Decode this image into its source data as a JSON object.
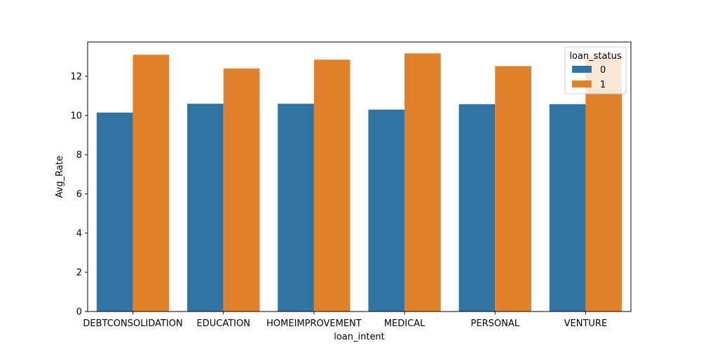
{
  "chart_data": {
    "type": "bar",
    "title": "",
    "xlabel": "loan_intent",
    "ylabel": "Avg_Rate",
    "categories": [
      "DEBTCONSOLIDATION",
      "EDUCATION",
      "HOMEIMPROVEMENT",
      "MEDICAL",
      "PERSONAL",
      "VENTURE"
    ],
    "series": [
      {
        "name": "0",
        "color": "#3274a1",
        "values": [
          10.15,
          10.6,
          10.6,
          10.3,
          10.58,
          10.58
        ]
      },
      {
        "name": "1",
        "color": "#e1812c",
        "values": [
          13.1,
          12.4,
          12.85,
          13.17,
          12.52,
          13.0
        ]
      }
    ],
    "ylim": [
      0,
      13.75
    ],
    "yticks": [
      0,
      2,
      4,
      6,
      8,
      10,
      12
    ],
    "legend": {
      "title": "loan_status",
      "placement": "top-right"
    },
    "grid": false
  }
}
